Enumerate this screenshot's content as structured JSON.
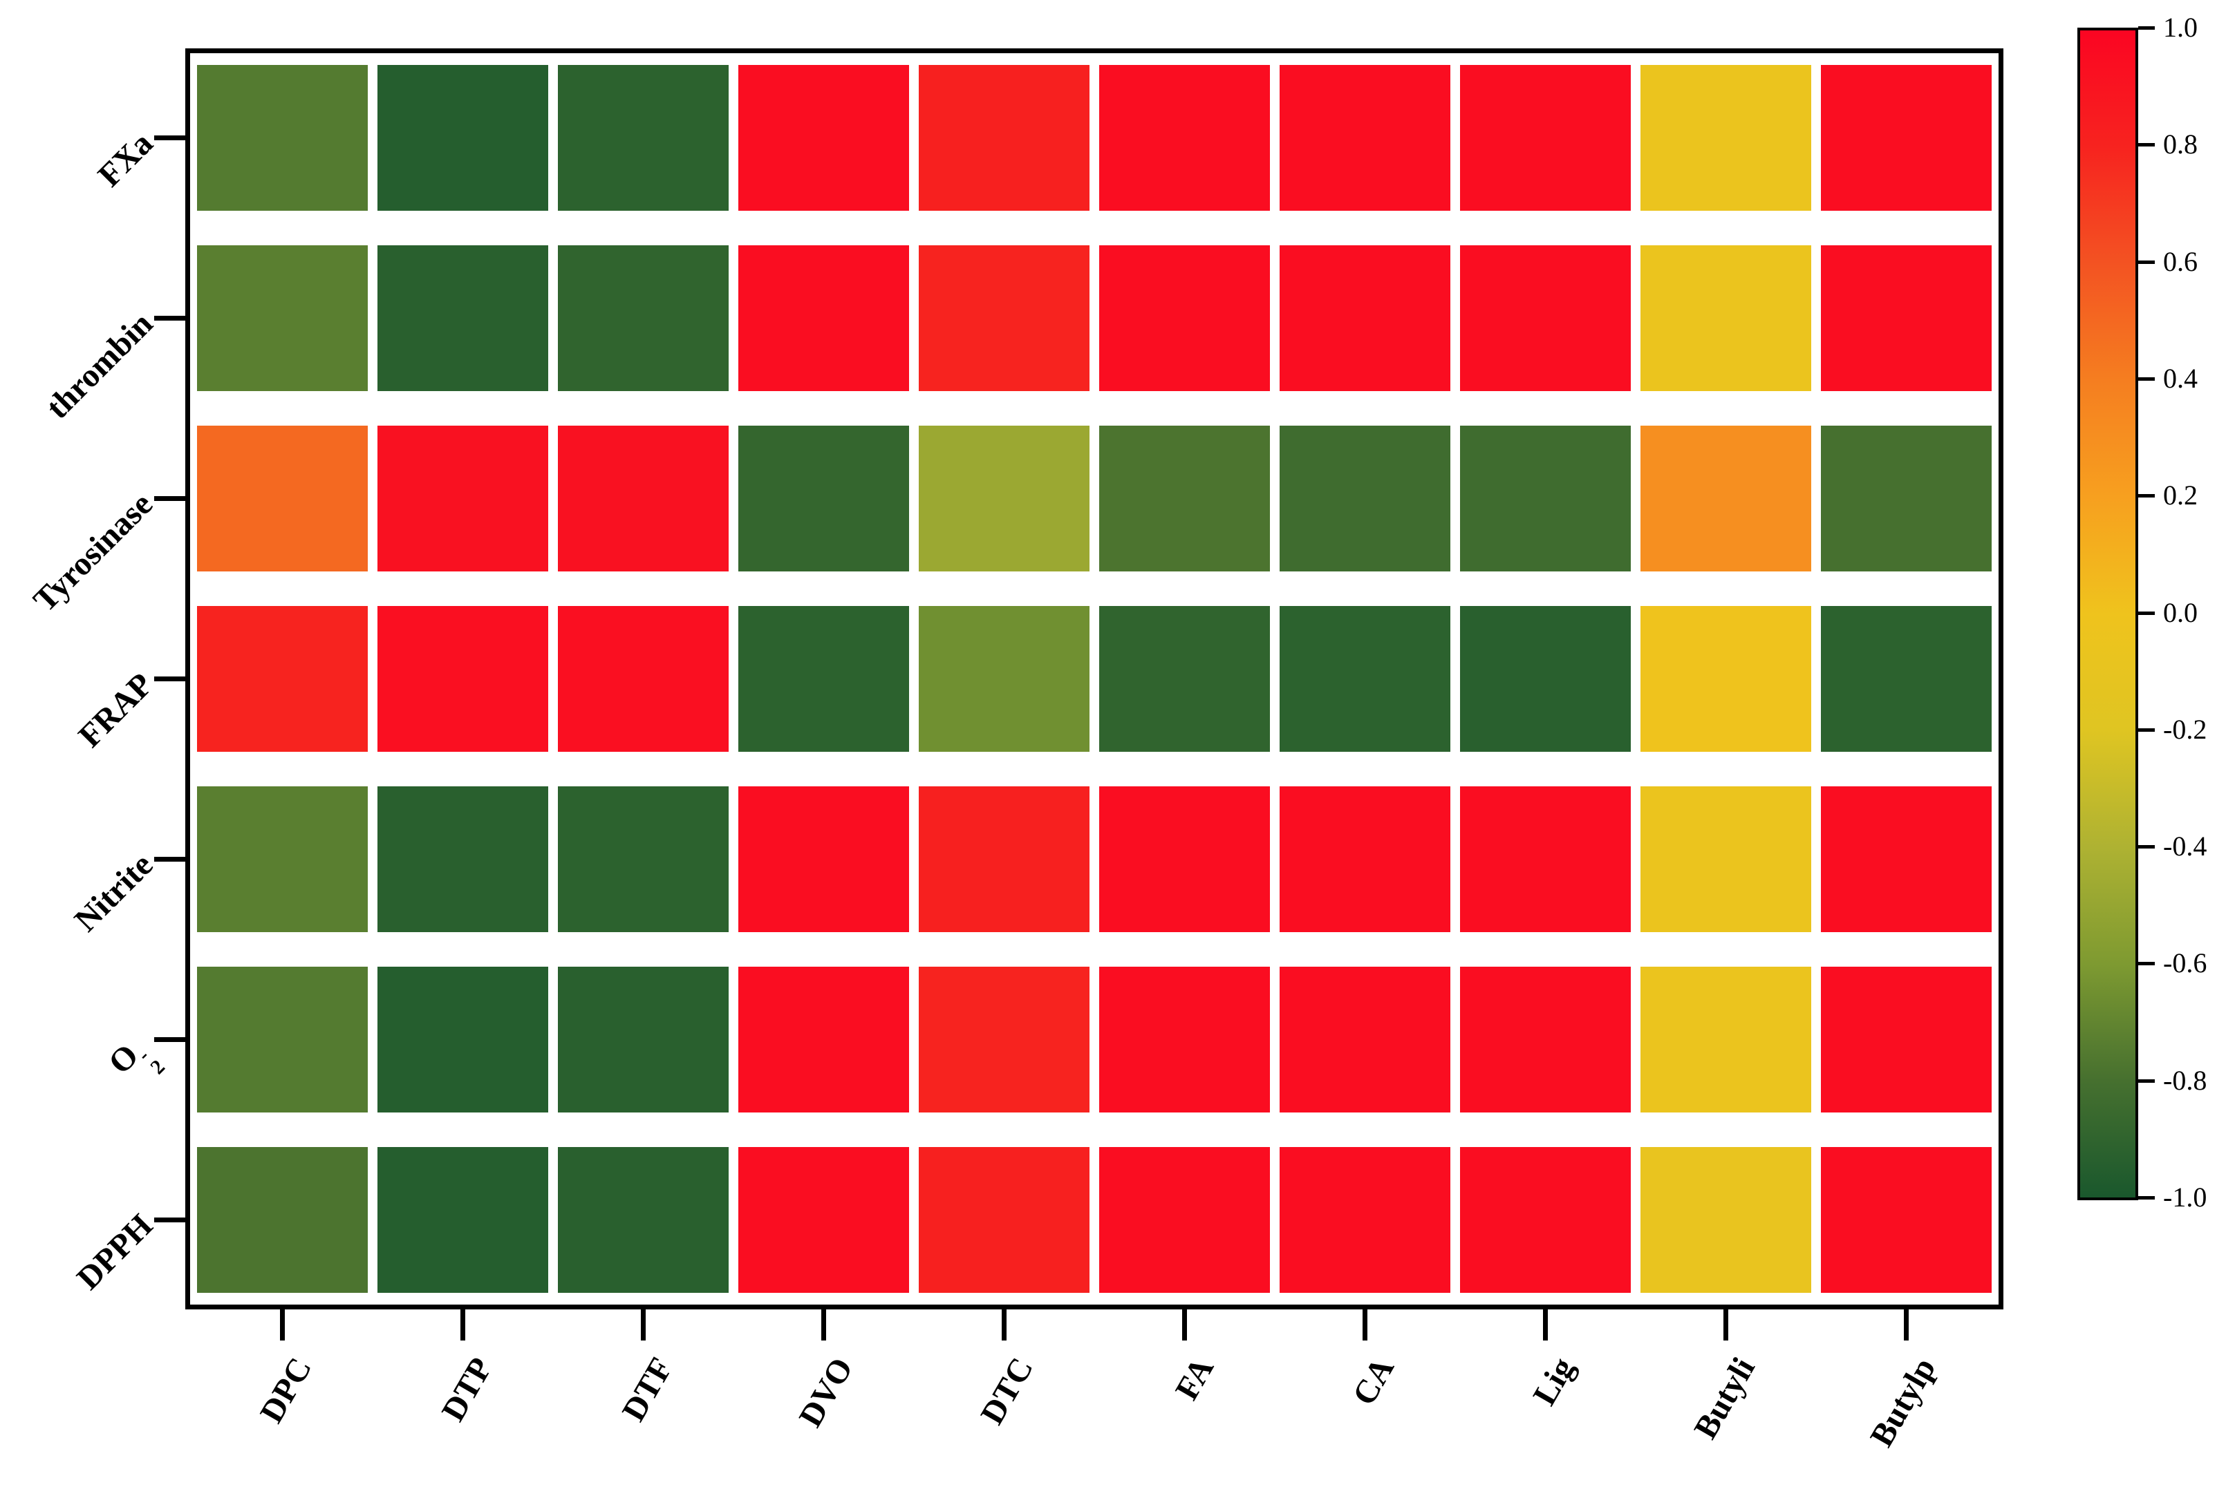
{
  "figure": {
    "kind": "correlation-heatmap",
    "background": "#ffffff",
    "frame_color": "#000000"
  },
  "chart_data": {
    "type": "heatmap",
    "title": "",
    "xlabel": "",
    "ylabel": "",
    "columns": [
      "DPC",
      "DTP",
      "DTF",
      "DVO",
      "DTC",
      "FA",
      "CA",
      "Lig",
      "Butyli",
      "Butylp"
    ],
    "rows": [
      "FXa",
      "thrombin",
      "Tyrosinase",
      "FRAP",
      "Nitrite",
      "O2-",
      "DPPH"
    ],
    "rows_rich": [
      {
        "base": "FXa"
      },
      {
        "base": "thrombin"
      },
      {
        "base": "Tyrosinase"
      },
      {
        "base": "FRAP"
      },
      {
        "base": "Nitrite"
      },
      {
        "base": "O",
        "sub": "2",
        "sup": "-"
      },
      {
        "base": "DPPH"
      }
    ],
    "values": [
      [
        -0.75,
        -0.95,
        -0.92,
        0.95,
        0.82,
        0.95,
        0.95,
        0.95,
        -0.05,
        0.95
      ],
      [
        -0.73,
        -0.93,
        -0.9,
        0.95,
        0.8,
        0.95,
        0.95,
        0.95,
        -0.05,
        0.95
      ],
      [
        0.5,
        0.92,
        0.92,
        -0.88,
        -0.48,
        -0.78,
        -0.83,
        -0.83,
        0.3,
        -0.8
      ],
      [
        0.8,
        0.93,
        0.93,
        -0.92,
        -0.65,
        -0.9,
        -0.92,
        -0.93,
        0.0,
        -0.92
      ],
      [
        -0.73,
        -0.93,
        -0.92,
        0.95,
        0.82,
        0.95,
        0.95,
        0.95,
        -0.05,
        0.95
      ],
      [
        -0.75,
        -0.95,
        -0.93,
        0.95,
        0.8,
        0.95,
        0.95,
        0.95,
        -0.05,
        0.95
      ],
      [
        -0.78,
        -0.95,
        -0.93,
        0.95,
        0.82,
        0.95,
        0.95,
        0.95,
        -0.08,
        0.95
      ]
    ],
    "value_range": [
      -1.0,
      1.0
    ],
    "grid": false,
    "legend_position": "right-colorbar",
    "colorbar": {
      "ticks": [
        1.0,
        0.8,
        0.6,
        0.4,
        0.2,
        0.0,
        -0.2,
        -0.4,
        -0.6,
        -0.8,
        -1.0
      ],
      "tick_labels": [
        "1.0",
        "0.8",
        "0.6",
        "0.4",
        "0.2",
        "0.0",
        "-0.2",
        "-0.4",
        "-0.6",
        "-0.8",
        "-1.0"
      ]
    },
    "colormap_stops": [
      {
        "v": 1.0,
        "color": "#FB0522"
      },
      {
        "v": 0.8,
        "color": "#F7231F"
      },
      {
        "v": 0.6,
        "color": "#F35322"
      },
      {
        "v": 0.4,
        "color": "#F57E20"
      },
      {
        "v": 0.2,
        "color": "#F7A01F"
      },
      {
        "v": 0.0,
        "color": "#EFC31D"
      },
      {
        "v": -0.2,
        "color": "#DFC522"
      },
      {
        "v": -0.4,
        "color": "#AEB232"
      },
      {
        "v": -0.6,
        "color": "#7E9A31"
      },
      {
        "v": -0.8,
        "color": "#46702F"
      },
      {
        "v": -1.0,
        "color": "#1A582D"
      }
    ]
  }
}
